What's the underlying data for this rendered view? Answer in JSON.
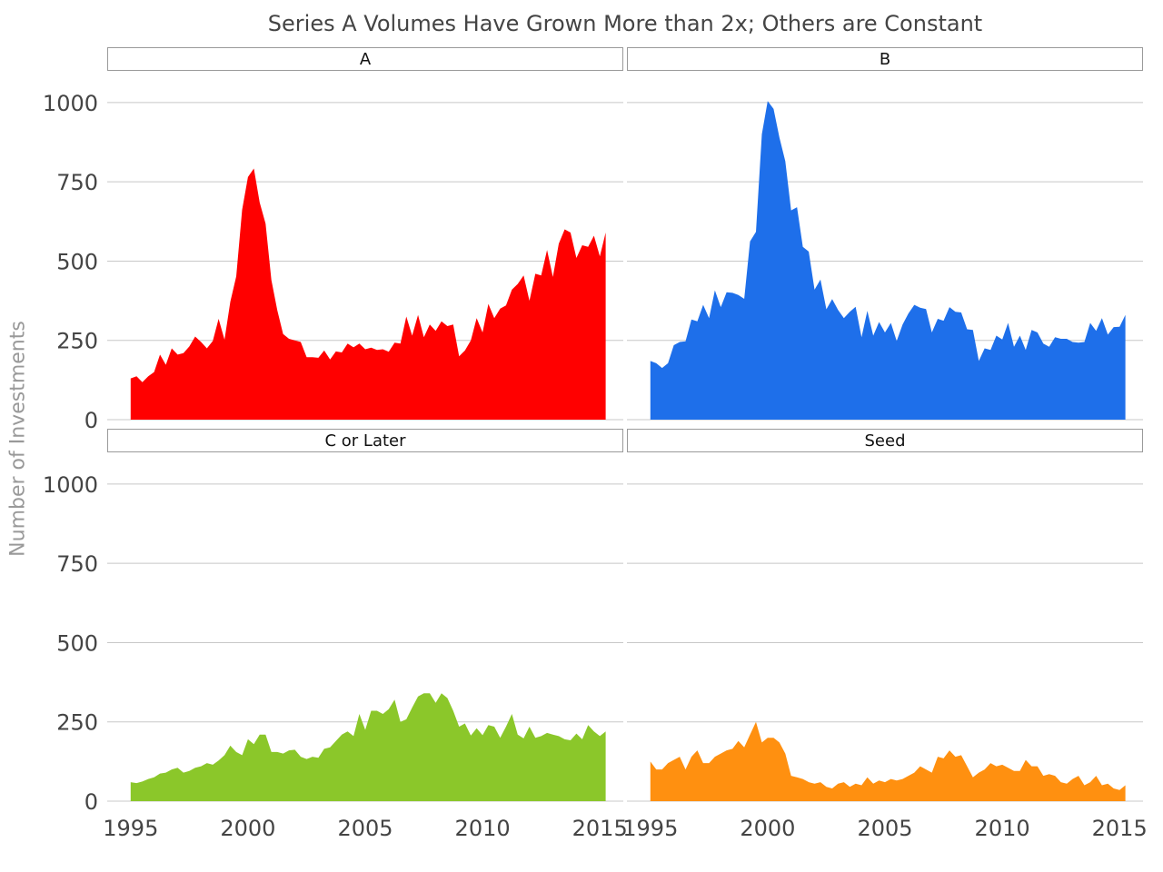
{
  "title": "Series A Volumes Have Grown More than 2x; Others are Constant",
  "ylabel": "Number of Investments",
  "chart_data": {
    "type": "area",
    "title": "Series A Volumes Have Grown More than 2x; Others are Constant",
    "xlabel": "",
    "ylabel": "Number of Investments",
    "xlim": [
      1994,
      2016
    ],
    "ylim": [
      0,
      1100
    ],
    "x_ticks": [
      1995,
      2000,
      2005,
      2010,
      2015
    ],
    "y_ticks": [
      0,
      250,
      500,
      750,
      1000
    ],
    "grid": true,
    "x": [
      1995.0,
      1995.25,
      1995.5,
      1995.75,
      1996.0,
      1996.25,
      1996.5,
      1996.75,
      1997.0,
      1997.25,
      1997.5,
      1997.75,
      1998.0,
      1998.25,
      1998.5,
      1998.75,
      1999.0,
      1999.25,
      1999.5,
      1999.75,
      2000.0,
      2000.25,
      2000.5,
      2000.75,
      2001.0,
      2001.25,
      2001.5,
      2001.75,
      2002.0,
      2002.25,
      2002.5,
      2002.75,
      2003.0,
      2003.25,
      2003.5,
      2003.75,
      2004.0,
      2004.25,
      2004.5,
      2004.75,
      2005.0,
      2005.25,
      2005.5,
      2005.75,
      2006.0,
      2006.25,
      2006.5,
      2006.75,
      2007.0,
      2007.25,
      2007.5,
      2007.75,
      2008.0,
      2008.25,
      2008.5,
      2008.75,
      2009.0,
      2009.25,
      2009.5,
      2009.75,
      2010.0,
      2010.25,
      2010.5,
      2010.75,
      2011.0,
      2011.25,
      2011.5,
      2011.75,
      2012.0,
      2012.25,
      2012.5,
      2012.75,
      2013.0,
      2013.25,
      2013.5,
      2013.75,
      2014.0,
      2014.25,
      2014.5,
      2014.75,
      2015.0,
      2015.25
    ],
    "panels": [
      {
        "name": "A",
        "color": "#ff0000",
        "values": [
          130,
          137,
          118,
          137,
          150,
          205,
          173,
          225,
          205,
          210,
          231,
          262,
          245,
          225,
          248,
          318,
          252,
          372,
          452,
          662,
          765,
          792,
          685,
          618,
          440,
          345,
          270,
          255,
          250,
          245,
          197,
          197,
          195,
          218,
          190,
          215,
          212,
          240,
          228,
          240,
          222,
          227,
          220,
          222,
          214,
          243,
          240,
          325,
          265,
          330,
          260,
          300,
          280,
          310,
          295,
          300,
          200,
          218,
          250,
          320,
          275,
          365,
          320,
          350,
          360,
          410,
          428,
          455,
          375,
          460,
          455,
          535,
          450,
          555,
          600,
          590,
          510,
          550,
          545,
          580,
          515,
          590
        ]
      },
      {
        "name": "B",
        "color": "#1e6fea",
        "values": [
          185,
          178,
          163,
          178,
          235,
          245,
          247,
          316,
          310,
          362,
          320,
          408,
          355,
          402,
          400,
          393,
          381,
          562,
          592,
          900,
          1005,
          980,
          890,
          815,
          660,
          670,
          545,
          530,
          410,
          442,
          348,
          380,
          346,
          320,
          340,
          356,
          260,
          343,
          265,
          308,
          275,
          305,
          248,
          300,
          335,
          362,
          353,
          349,
          275,
          318,
          312,
          355,
          340,
          338,
          285,
          283,
          185,
          225,
          220,
          265,
          253,
          305,
          230,
          265,
          220,
          283,
          275,
          240,
          230,
          260,
          255,
          255,
          245,
          243,
          245,
          305,
          280,
          320,
          268,
          292,
          293,
          330
        ]
      },
      {
        "name": "C or Later",
        "color": "#8bc72a",
        "values": [
          60,
          57,
          62,
          70,
          75,
          87,
          90,
          100,
          105,
          90,
          95,
          105,
          110,
          120,
          115,
          128,
          145,
          175,
          155,
          145,
          195,
          180,
          210,
          210,
          155,
          155,
          150,
          160,
          162,
          140,
          133,
          140,
          137,
          165,
          170,
          190,
          210,
          220,
          205,
          275,
          225,
          285,
          285,
          275,
          290,
          320,
          250,
          258,
          295,
          330,
          340,
          340,
          310,
          340,
          325,
          285,
          235,
          245,
          207,
          230,
          208,
          240,
          235,
          200,
          235,
          275,
          210,
          198,
          235,
          200,
          205,
          215,
          210,
          205,
          195,
          192,
          213,
          195,
          240,
          220,
          205,
          220
        ]
      },
      {
        "name": "Seed",
        "color": "#ff9010",
        "values": [
          125,
          100,
          100,
          120,
          130,
          140,
          100,
          140,
          160,
          120,
          120,
          140,
          150,
          160,
          165,
          190,
          170,
          210,
          250,
          185,
          200,
          200,
          185,
          150,
          80,
          75,
          70,
          60,
          55,
          60,
          45,
          40,
          55,
          60,
          45,
          55,
          50,
          75,
          55,
          65,
          60,
          70,
          65,
          70,
          80,
          90,
          110,
          100,
          90,
          140,
          135,
          160,
          140,
          145,
          110,
          75,
          90,
          100,
          120,
          110,
          115,
          105,
          95,
          95,
          130,
          110,
          110,
          80,
          85,
          80,
          60,
          55,
          70,
          80,
          50,
          60,
          80,
          50,
          55,
          40,
          35,
          50
        ]
      }
    ]
  }
}
